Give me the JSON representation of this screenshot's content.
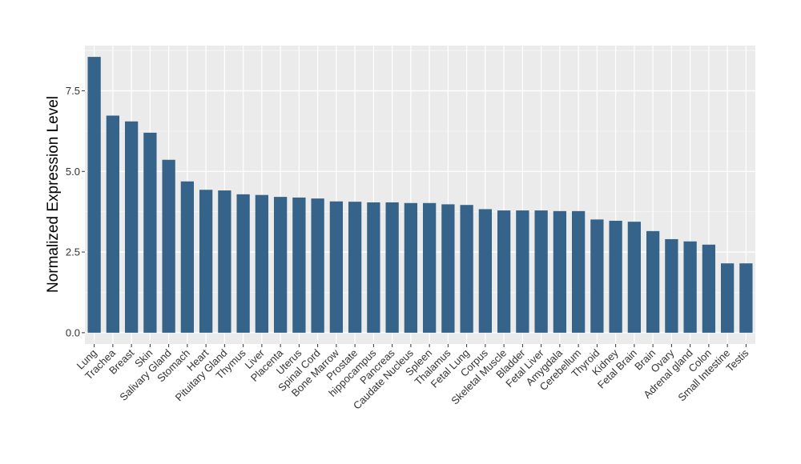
{
  "chart_data": {
    "type": "bar",
    "title": "",
    "xlabel": "",
    "ylabel": "Normalized Expression Level",
    "ylim": [
      -0.35,
      8.9
    ],
    "yticks": [
      0.0,
      2.5,
      5.0,
      7.5
    ],
    "ytick_labels": [
      "0.0",
      "2.5",
      "5.0",
      "7.5"
    ],
    "grid": true,
    "legend": "none",
    "categories": [
      "Lung",
      "Trachea",
      "Breast",
      "Skin",
      "Salivary Gland",
      "Stomach",
      "Heart",
      "Pituitary Gland",
      "Thymus",
      "Liver",
      "Placenta",
      "Uterus",
      "Spinal Cord",
      "Bone Marrow",
      "Prostate",
      "hippocampus",
      "Pancreas",
      "Caudate Nucleus",
      "Spleen",
      "Thalamus",
      "Fetal Lung",
      "Corpus",
      "Skeletal Muscle",
      "Bladder",
      "Fetal Liver",
      "Amygdala",
      "Cerebellum",
      "Thyroid",
      "Kidney",
      "Fetal Brain",
      "Brain",
      "Ovary",
      "Adrenal gland",
      "Colon",
      "Small Intestine",
      "Testis"
    ],
    "values": [
      8.55,
      6.73,
      6.55,
      6.2,
      5.36,
      4.69,
      4.43,
      4.41,
      4.29,
      4.27,
      4.21,
      4.19,
      4.16,
      4.07,
      4.06,
      4.04,
      4.04,
      4.02,
      4.02,
      3.98,
      3.96,
      3.83,
      3.79,
      3.79,
      3.79,
      3.77,
      3.77,
      3.51,
      3.47,
      3.44,
      3.15,
      2.9,
      2.83,
      2.73,
      2.15,
      2.15
    ],
    "colors": {
      "bar": "#35638A",
      "panel": "#EBEBEB",
      "grid_major": "#FFFFFF",
      "tick_label": "#333333"
    }
  }
}
